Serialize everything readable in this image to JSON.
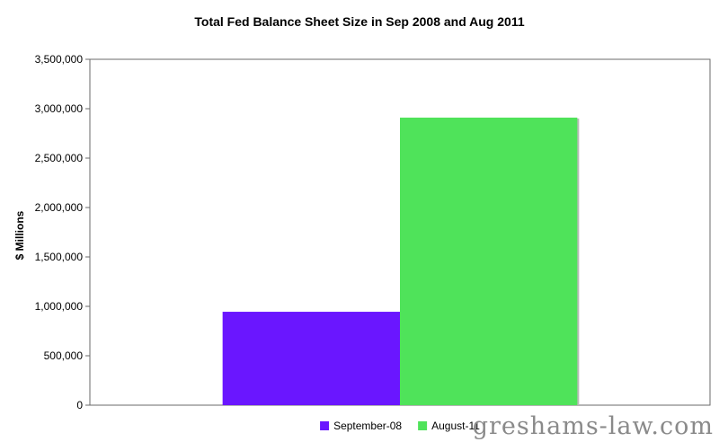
{
  "chart_data": {
    "type": "bar",
    "title": "Total Fed Balance Sheet Size in Sep 2008 and Aug 2011",
    "xlabel": "",
    "ylabel": "$ Millions",
    "ylim": [
      0,
      3500000
    ],
    "yticks": [
      0,
      500000,
      1000000,
      1500000,
      2000000,
      2500000,
      3000000,
      3500000
    ],
    "ytick_labels": [
      "0",
      "500,000",
      "1,000,000",
      "1,500,000",
      "2,000,000",
      "2,500,000",
      "3,000,000",
      "3,500,000"
    ],
    "categories": [
      ""
    ],
    "series": [
      {
        "name": "September-08",
        "values": [
          945000
        ],
        "color": "#6a16ff"
      },
      {
        "name": "August-11",
        "values": [
          2910000
        ],
        "color": "#4fe35a"
      }
    ],
    "grid": false,
    "legend": "bottom-center"
  },
  "watermark": "greshams-law.com"
}
